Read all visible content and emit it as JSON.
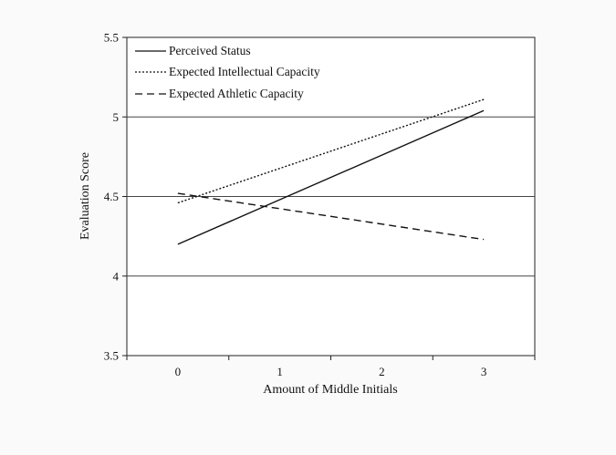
{
  "chart_data": {
    "type": "line",
    "title": "",
    "xlabel": "Amount of Middle Initials",
    "ylabel": "Evaluation Score",
    "x": [
      0,
      3
    ],
    "xticks": [
      0,
      1,
      2,
      3
    ],
    "xtick_labels": [
      "0",
      "1",
      "2",
      "3"
    ],
    "xlim": [
      -0.5,
      3.5
    ],
    "ylim": [
      3.5,
      5.5
    ],
    "yticks": [
      3.5,
      4,
      4.5,
      5,
      5.5
    ],
    "ytick_labels": [
      "3.5",
      "4",
      "4.5",
      "5",
      "5.5"
    ],
    "grid": "horizontal",
    "legend_position": "top-left",
    "series": [
      {
        "name": "Perceived Status",
        "style": "solid",
        "values": [
          4.2,
          5.04
        ]
      },
      {
        "name": "Expected Intellectual Capacity",
        "style": "dotted",
        "values": [
          4.46,
          5.11
        ]
      },
      {
        "name": "Expected Athletic Capacity",
        "style": "dashed",
        "values": [
          4.52,
          4.23
        ]
      }
    ]
  },
  "colors": {
    "line": "#111111",
    "background": "#fafafa",
    "plot_background": "#ffffff"
  }
}
